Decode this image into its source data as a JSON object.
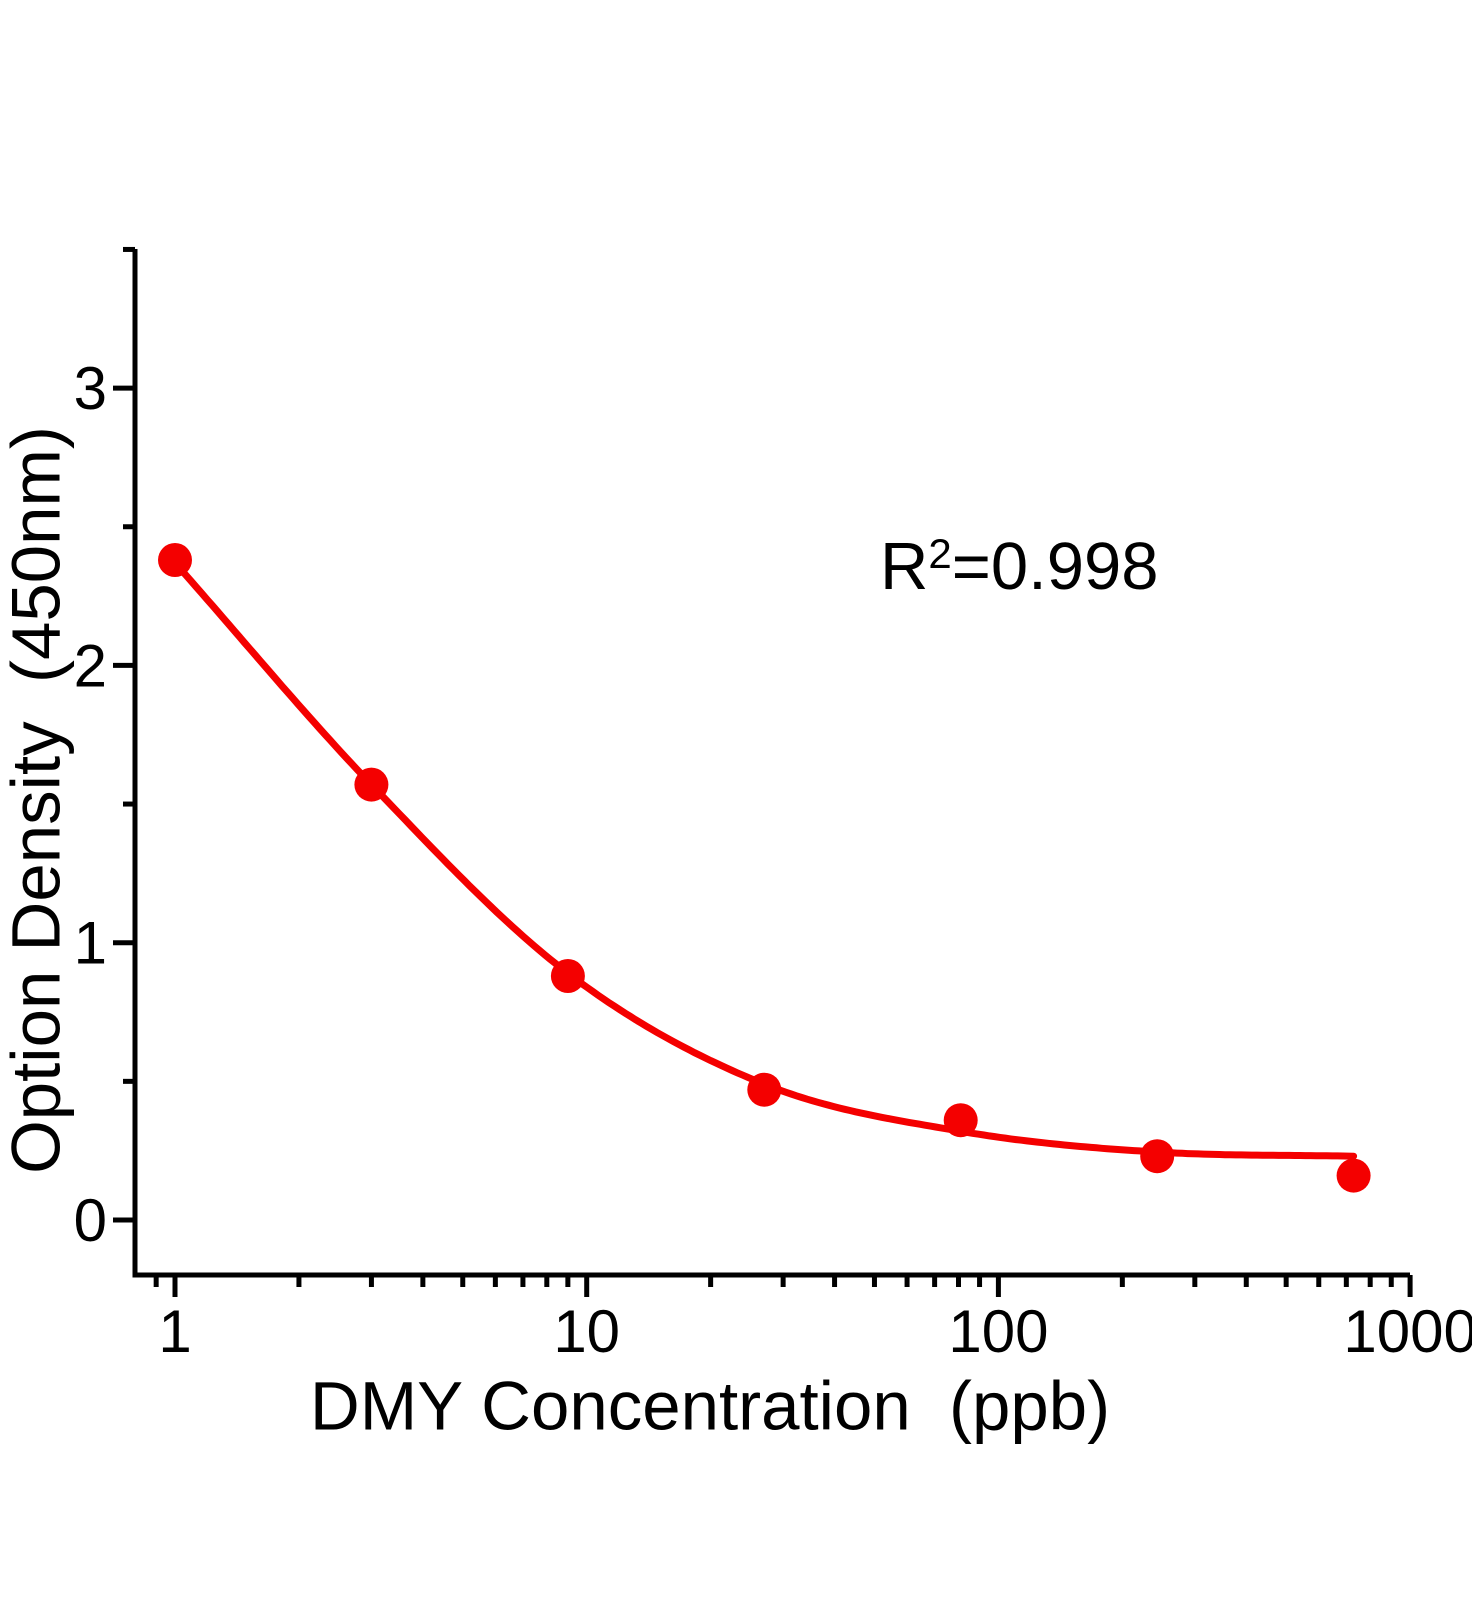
{
  "figure": {
    "background": "#ffffff",
    "x_axis": {
      "label": "DMY Concentration  (ppb)",
      "ticks": [
        "1",
        "10",
        "100",
        "1000"
      ]
    },
    "y_axis": {
      "label": "Option Density  (450nm)",
      "ticks": [
        "0",
        "1",
        "2",
        "3"
      ]
    },
    "annotation": {
      "base": "R",
      "sup": "2",
      "rest": "=0.998"
    }
  },
  "chart_data": {
    "type": "scatter",
    "title": "",
    "xlabel": "DMY Concentration (ppb)",
    "ylabel": "Option Density (450nm)",
    "x_scale": "log",
    "y_scale": "linear",
    "xlim": [
      0.8,
      1000
    ],
    "ylim": [
      -0.2,
      3.5
    ],
    "grid": false,
    "legend": "none",
    "annotation_text": "R2=0.998",
    "x_ticks_major": [
      1,
      10,
      100,
      1000
    ],
    "x_ticks_minor": [
      0.9,
      2,
      3,
      4,
      5,
      6,
      7,
      8,
      9,
      20,
      30,
      40,
      50,
      60,
      70,
      80,
      90,
      200,
      300,
      400,
      500,
      600,
      700,
      800,
      900
    ],
    "y_ticks_major": [
      0,
      1,
      2,
      3
    ],
    "y_ticks_minor": [
      0.5,
      1.5,
      2.5,
      3.5
    ],
    "accent_color": "#f40000",
    "axis_color": "#000000",
    "series": [
      {
        "name": "standard-points",
        "type": "scatter",
        "color": "#f40000",
        "points": [
          [
            1,
            2.38
          ],
          [
            3,
            1.57
          ],
          [
            9,
            0.88
          ],
          [
            27,
            0.47
          ],
          [
            81,
            0.36
          ],
          [
            243,
            0.23
          ],
          [
            729,
            0.16
          ]
        ]
      },
      {
        "name": "4pl-fit-curve",
        "type": "line",
        "color": "#f40000",
        "points": [
          [
            1,
            2.37
          ],
          [
            3,
            1.57
          ],
          [
            9,
            0.89
          ],
          [
            27,
            0.49
          ],
          [
            81,
            0.32
          ],
          [
            243,
            0.245
          ],
          [
            729,
            0.23
          ]
        ]
      }
    ]
  }
}
